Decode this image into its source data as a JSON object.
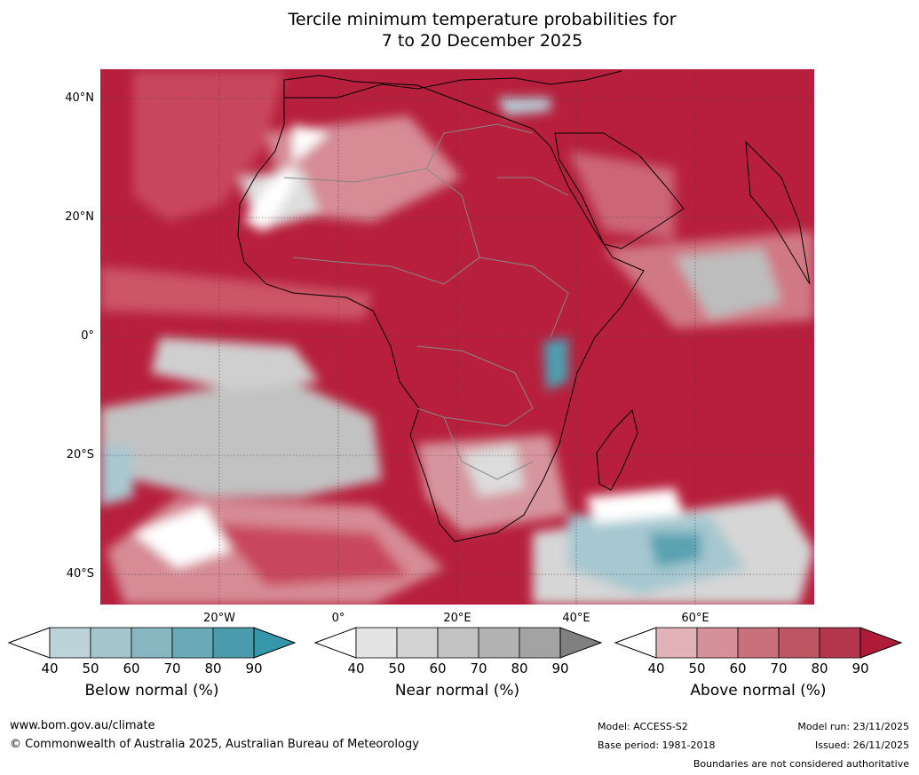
{
  "title": {
    "line1": "Tercile minimum temperature probabilities for",
    "line2": "7 to 20 December 2025"
  },
  "map": {
    "lat_labels": [
      "40°N",
      "20°N",
      "0°",
      "20°S",
      "40°S"
    ],
    "lon_labels": [
      "20°W",
      "0°",
      "20°E",
      "40°E",
      "60°E"
    ]
  },
  "colorbars": [
    {
      "title": "Below normal (%)",
      "ticks": [
        "40",
        "50",
        "60",
        "70",
        "80",
        "90"
      ],
      "colors": [
        "#ffffff",
        "#bcd3da",
        "#a3c6cd",
        "#88b7c2",
        "#6aaab7",
        "#4a9cac",
        "#3597aa"
      ]
    },
    {
      "title": "Near normal (%)",
      "ticks": [
        "40",
        "50",
        "60",
        "70",
        "80",
        "90"
      ],
      "colors": [
        "#ffffff",
        "#e3e3e3",
        "#d3d3d3",
        "#c3c3c3",
        "#b3b3b3",
        "#a3a3a3",
        "#808080"
      ]
    },
    {
      "title": "Above normal (%)",
      "ticks": [
        "40",
        "50",
        "60",
        "70",
        "80",
        "90"
      ],
      "colors": [
        "#ffffff",
        "#e1b2b8",
        "#d59099",
        "#c9707c",
        "#bd5563",
        "#b3364c",
        "#ae1c3a"
      ]
    }
  ],
  "footer": {
    "website": "www.bom.gov.au/climate",
    "copyright": "© Commonwealth of Australia 2025, Australian Bureau of Meteorology",
    "model": "Model: ACCESS-S2",
    "base_period": "Base period: 1981-2018",
    "model_run": "Model run: 23/11/2025",
    "issued": "Issued: 26/11/2025",
    "disclaimer": "Boundaries are not considered authoritative"
  }
}
